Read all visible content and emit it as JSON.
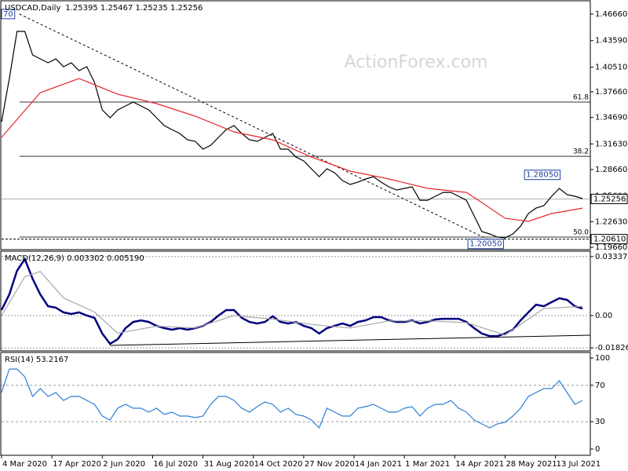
{
  "chart_data": [
    {
      "type": "line",
      "title": "USDCAD,Daily",
      "subtitle": "1.25395 1.25467 1.25235 1.25256",
      "watermark": "ActionForex.com",
      "xlim": [
        0,
        76
      ],
      "ylim": [
        1.1939,
        1.4793
      ],
      "yticks": [
        {
          "value": 1.4666,
          "label": "1.46660"
        },
        {
          "value": 1.4359,
          "label": "1.43590"
        },
        {
          "value": 1.4051,
          "label": "1.40510"
        },
        {
          "value": 1.3766,
          "label": "1.37660"
        },
        {
          "value": 1.3469,
          "label": "1.34690"
        },
        {
          "value": 1.3163,
          "label": "1.31630"
        },
        {
          "value": 1.2866,
          "label": "1.28660"
        },
        {
          "value": 1.256,
          "label": "1.25600"
        },
        {
          "value": 1.2263,
          "label": "1.22630"
        },
        {
          "value": 1.1966,
          "label": "1.19660"
        }
      ],
      "series": [
        {
          "color": "#000000",
          "values": [
            1.342,
            1.392,
            1.4466,
            1.4466,
            1.4193,
            1.4148,
            1.4102,
            1.4148,
            1.4057,
            1.4102,
            1.4011,
            1.4057,
            1.3875,
            1.3557,
            1.3466,
            1.3557,
            1.3602,
            1.3648,
            1.3602,
            1.3557,
            1.3466,
            1.3375,
            1.3329,
            1.3284,
            1.3211,
            1.3193,
            1.3102,
            1.3148,
            1.3239,
            1.3329,
            1.3375,
            1.3284,
            1.3211,
            1.3193,
            1.3239,
            1.3284,
            1.3102,
            1.3102,
            1.3011,
            1.2966,
            1.2875,
            1.2784,
            1.2875,
            1.2829,
            1.2739,
            1.2693,
            1.272,
            1.2757,
            1.2784,
            1.272,
            1.2666,
            1.263,
            1.2648,
            1.2666,
            1.2511,
            1.2511,
            1.2557,
            1.2602,
            1.2602,
            1.2557,
            1.2511,
            1.233,
            1.2148,
            1.2121,
            1.2084,
            1.2075,
            1.2121,
            1.2211,
            1.2357,
            1.242,
            1.2448,
            1.2557,
            1.2648,
            1.2575,
            1.2557,
            1.253
          ]
        },
        {
          "color": "#e8262e",
          "x": [
            0,
            5,
            10,
            15,
            20,
            25,
            30,
            35,
            40,
            45,
            50,
            55,
            60,
            62,
            65,
            68,
            71,
            75
          ],
          "values": [
            1.3239,
            1.3757,
            1.392,
            1.3739,
            1.363,
            1.3484,
            1.3302,
            1.3211,
            1.3011,
            1.2848,
            1.2757,
            1.2648,
            1.2602,
            1.2484,
            1.2302,
            1.2266,
            1.2357,
            1.242
          ]
        }
      ],
      "levels": [
        {
          "label": "61.8",
          "value": 1.3648
        },
        {
          "label": "38.2",
          "value": 1.302
        },
        {
          "label": "50.0",
          "value": 1.2084
        }
      ],
      "support": {
        "label": "1.20610",
        "value": 1.2061
      },
      "price_line": {
        "label": "1.25256",
        "value": 1.25256
      },
      "trendline": {
        "x": [
          2.3,
          64
        ],
        "values": [
          1.4667,
          1.2005
        ]
      },
      "annotations": [
        {
          "label": "70",
          "x": 0,
          "value": 1.4667
        },
        {
          "label": "1.28050",
          "x": 67.5,
          "value": 1.2805
        },
        {
          "label": "1.20050",
          "x": 60.2,
          "value": 1.2005
        }
      ]
    },
    {
      "type": "line",
      "title": "MACD(12,26,9) 0.003302 0.005190",
      "xlim": [
        0,
        76
      ],
      "ylim": [
        -0.02,
        0.036
      ],
      "yticks": [
        {
          "value": 0.03337,
          "label": "0.03337"
        },
        {
          "value": 0,
          "label": "0.00"
        },
        {
          "value": -0.018262,
          "label": "-0.018262"
        }
      ],
      "series": [
        {
          "color": "#000080",
          "values": [
            0.0031,
            0.012,
            0.0254,
            0.032,
            0.0209,
            0.012,
            0.0053,
            0.0045,
            0.0018,
            0.0009,
            0.0018,
            0,
            -0.0013,
            -0.0102,
            -0.016,
            -0.0134,
            -0.0071,
            -0.0036,
            -0.0027,
            -0.0036,
            -0.0058,
            -0.0071,
            -0.008,
            -0.0071,
            -0.008,
            -0.0071,
            -0.0058,
            -0.0036,
            0,
            0.0031,
            0.0031,
            -0.0013,
            -0.0036,
            -0.0045,
            -0.0036,
            -0.0004,
            -0.0036,
            -0.0045,
            -0.0036,
            -0.0058,
            -0.0071,
            -0.0102,
            -0.0071,
            -0.0058,
            -0.0045,
            -0.0058,
            -0.0036,
            -0.0027,
            -0.0009,
            -0.0009,
            -0.0027,
            -0.0036,
            -0.0036,
            -0.0027,
            -0.0045,
            -0.0036,
            -0.0022,
            -0.0018,
            -0.0018,
            -0.0018,
            -0.0036,
            -0.0071,
            -0.0102,
            -0.0116,
            -0.0116,
            -0.0102,
            -0.008,
            -0.0027,
            0.0018,
            0.0062,
            0.0053,
            0.0076,
            0.0098,
            0.0089,
            0.0053,
            0.004
          ]
        },
        {
          "color": "#a8a8a8",
          "x": [
            0,
            3,
            5,
            8,
            12,
            15,
            20,
            25,
            30,
            35,
            40,
            45,
            50,
            55,
            60,
            65,
            70,
            75
          ],
          "values": [
            0,
            0.022,
            0.025,
            0.01,
            0.002,
            -0.01,
            -0.006,
            -0.007,
            0,
            -0.002,
            -0.005,
            -0.007,
            -0.003,
            -0.003,
            -0.004,
            -0.011,
            0.004,
            0.0052
          ]
        }
      ],
      "trendline": {
        "x": [
          14,
          76
        ],
        "values": [
          -0.0169,
          -0.0111
        ]
      },
      "grid": true
    },
    {
      "type": "line",
      "title": "RSI(14) 53.2167",
      "xlim": [
        0,
        76
      ],
      "ylim": [
        -6.9,
        105.2
      ],
      "yticks": [
        100,
        70,
        30,
        0
      ],
      "levels": [
        70,
        30
      ],
      "xticks": [
        {
          "value": 0,
          "label": "4 Mar 2020"
        },
        {
          "value": 6.5,
          "label": "17 Apr 2020"
        },
        {
          "value": 13,
          "label": "2 Jun 2020"
        },
        {
          "value": 19.5,
          "label": "16 Jul 2020"
        },
        {
          "value": 26,
          "label": "31 Aug 2020"
        },
        {
          "value": 32.5,
          "label": "14 Oct 2020"
        },
        {
          "value": 39,
          "label": "27 Nov 2020"
        },
        {
          "value": 45.5,
          "label": "14 Jan 2021"
        },
        {
          "value": 52,
          "label": "1 Mar 2021"
        },
        {
          "value": 58.5,
          "label": "14 Apr 2021"
        },
        {
          "value": 65,
          "label": "28 May 2021"
        },
        {
          "value": 71.5,
          "label": "13 Jul 2021"
        }
      ],
      "series": [
        {
          "color": "#2a7fd4",
          "values": [
            62.1,
            87.9,
            87.9,
            79.3,
            57.8,
            66.4,
            57.8,
            62.1,
            53.4,
            57.8,
            57.8,
            53.4,
            49.1,
            36.2,
            31.9,
            44.8,
            49.1,
            44.8,
            44.8,
            40.5,
            44.8,
            37.9,
            40.5,
            36.2,
            36.2,
            34.5,
            36.2,
            49.1,
            57.8,
            57.8,
            53.4,
            44.8,
            40.5,
            46.6,
            51.7,
            49.1,
            40.5,
            44.8,
            37.9,
            36.2,
            31.9,
            23.3,
            44.8,
            40.5,
            36.2,
            36.2,
            44.8,
            46.6,
            49.1,
            44.8,
            40.5,
            40.5,
            44.8,
            46.6,
            36.2,
            44.8,
            49.1,
            49.1,
            53.4,
            44.8,
            40.5,
            31.9,
            27.6,
            23.3,
            27.6,
            29.3,
            36.2,
            44.8,
            57.8,
            62.1,
            66.4,
            66.4,
            75.0,
            62.1,
            49.1,
            53.4
          ]
        }
      ]
    }
  ]
}
